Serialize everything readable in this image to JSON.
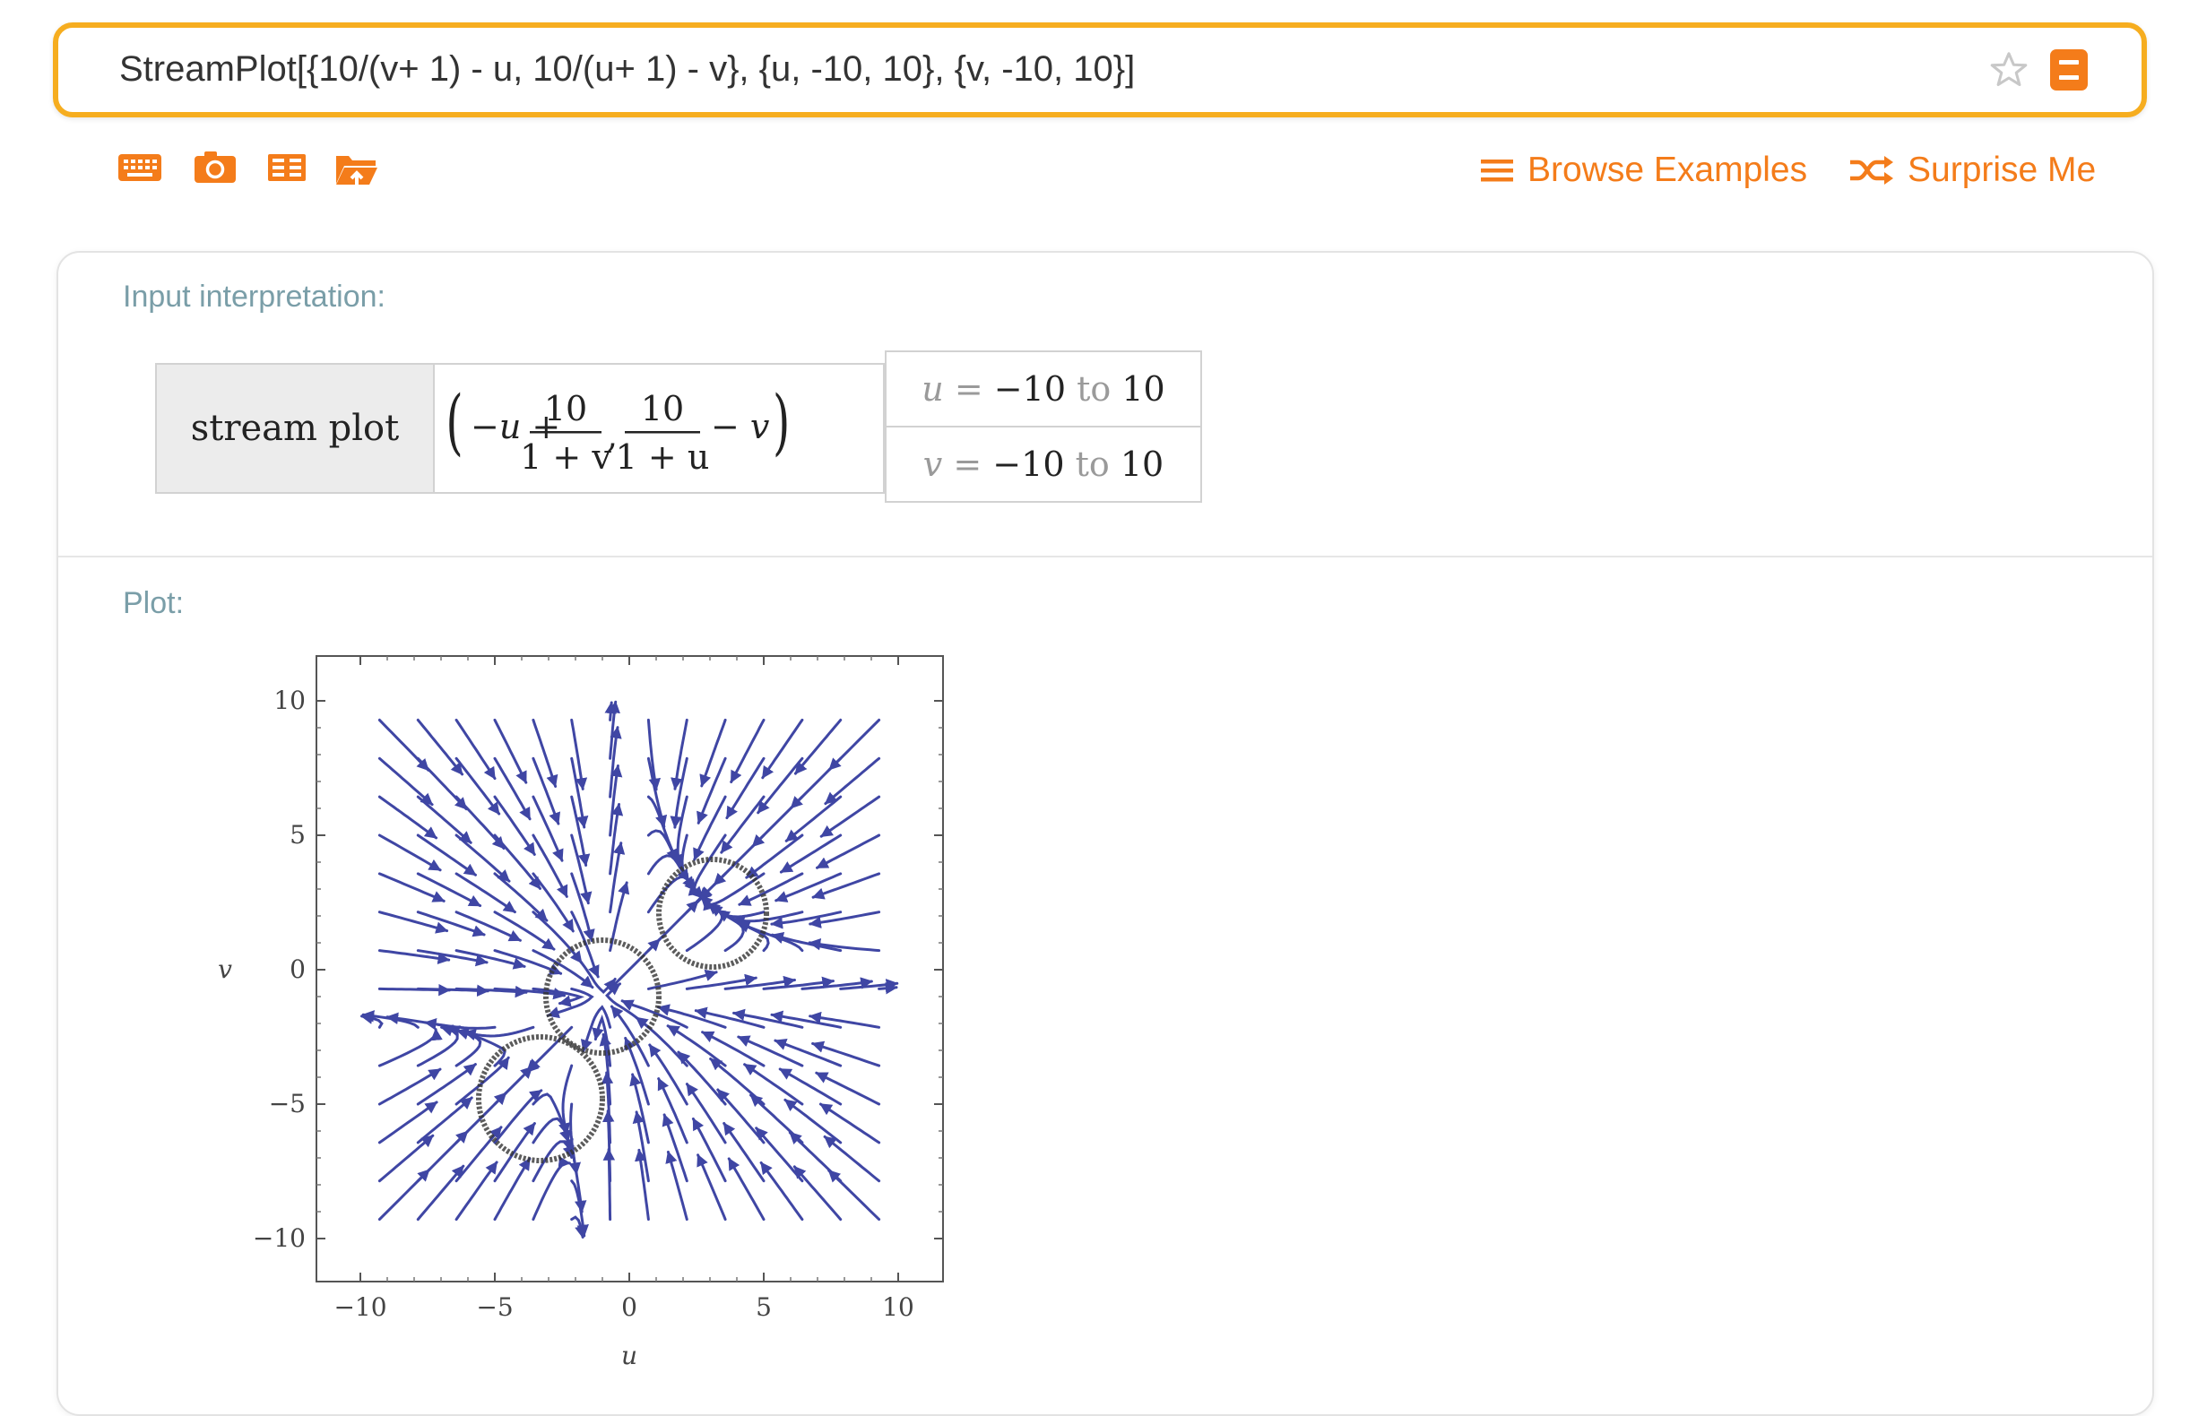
{
  "search": {
    "value": "StreamPlot[{10/(v+ 1) - u, 10/(u+ 1) - v}, {u, -10, 10}, {v, -10, 10}]"
  },
  "toolbar": {
    "icons": [
      "keyboard-icon",
      "camera-icon",
      "table-icon",
      "upload-folder-icon"
    ],
    "browse_examples": "Browse Examples",
    "surprise_me": "Surprise Me"
  },
  "pods": {
    "input_interpretation": {
      "title": "Input interpretation:",
      "label": "stream plot",
      "expression": {
        "open": "(",
        "term1_prefix": "−u +",
        "frac1_num": "10",
        "frac1_den": "1 + v",
        "comma": ",",
        "frac2_num": "10",
        "frac2_den": "1 + u",
        "term2_suffix": "− v",
        "close": ")"
      },
      "ranges": [
        {
          "var": "u",
          "eq": "=",
          "from": "−10",
          "to": "to",
          "end": "10"
        },
        {
          "var": "v",
          "eq": "=",
          "from": "−10",
          "to": "to",
          "end": "10"
        }
      ]
    },
    "plot": {
      "title": "Plot:"
    }
  },
  "chart_data": {
    "type": "streamplot",
    "field": {
      "du": "10/(1+v) - u",
      "dv": "10/(1+u) - v"
    },
    "xlabel": "u",
    "ylabel": "v",
    "xlim": [
      -10,
      10
    ],
    "ylim": [
      -10,
      10
    ],
    "xticks": [
      "−10",
      "−5",
      "0",
      "5",
      "10"
    ],
    "yticks": [
      "10",
      "5",
      "0",
      "−5",
      "−10"
    ],
    "stream_color": "#3f46a4",
    "circle_color": "#333333",
    "circles": [
      {
        "cu": -1,
        "cv": -1,
        "r": 2.1
      },
      {
        "cu": 3.1,
        "cv": 2.1,
        "r": 2
      },
      {
        "cu": -3.3,
        "cv": -4.8,
        "r": 2.3
      }
    ]
  },
  "colors": {
    "accent": "#f47c1a",
    "search_border": "#f6ad1f",
    "pod_title": "#7a9ea8"
  }
}
